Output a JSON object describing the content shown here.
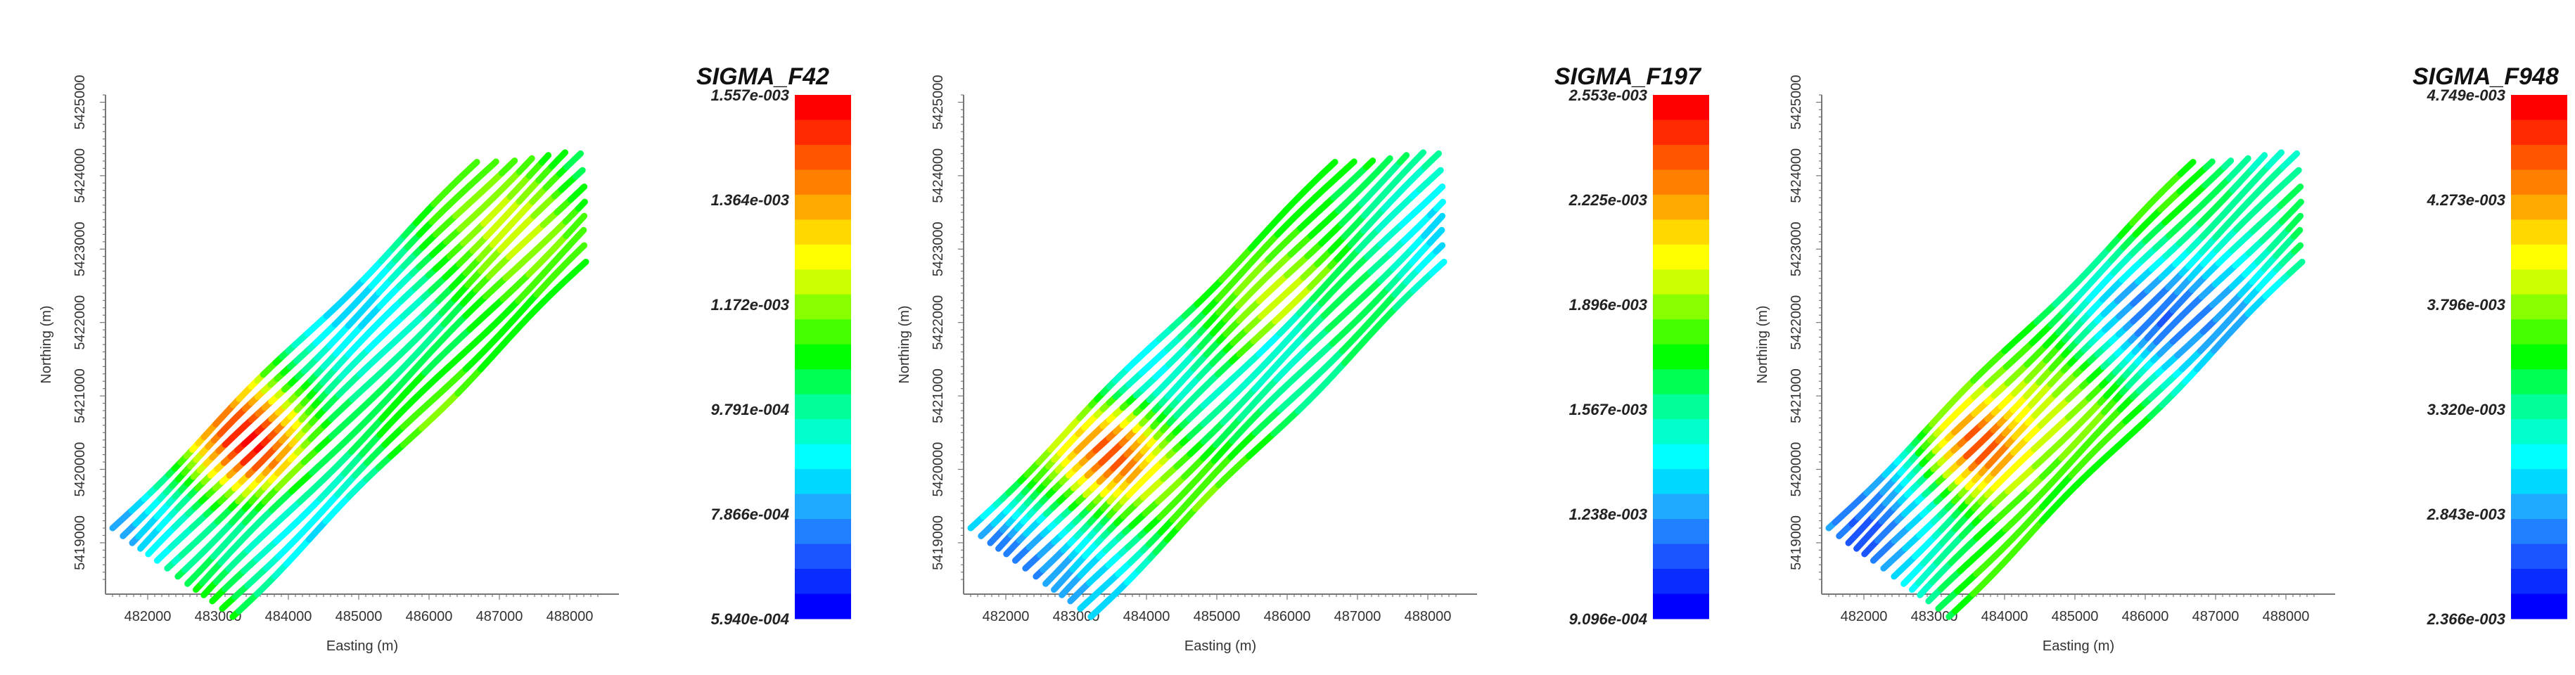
{
  "chart_data": [
    {
      "type": "scatter",
      "variable": "SIGMA_F42",
      "xlabel": "Easting (m)",
      "ylabel": "Northing (m)",
      "x_ticks": [
        "482000",
        "483000",
        "484000",
        "485000",
        "486000",
        "487000",
        "488000"
      ],
      "y_ticks": [
        "5419000",
        "5420000",
        "5421000",
        "5422000",
        "5423000",
        "5424000",
        "5425000"
      ],
      "xlim": [
        481400,
        488700
      ],
      "ylim": [
        5418300,
        5425100
      ],
      "colorbar": {
        "title": "SIGMA_F42",
        "tick_labels": [
          "1.557e-003",
          "1.364e-003",
          "1.172e-003",
          "9.791e-004",
          "7.866e-004",
          "5.940e-004"
        ],
        "min": 0.000594,
        "max": 0.001557
      },
      "flight_lines": {
        "count": 14,
        "heading_deg": 45,
        "description_values": "Values increase from blue (low) in the south-west and east-central zones to red (high) in the south-western band around Easting 483500-485000, Northing 5420000-5421000."
      }
    },
    {
      "type": "scatter",
      "variable": "SIGMA_F197",
      "xlabel": "Easting (m)",
      "ylabel": "Northing (m)",
      "x_ticks": [
        "482000",
        "483000",
        "484000",
        "485000",
        "486000",
        "487000",
        "488000"
      ],
      "y_ticks": [
        "5419000",
        "5420000",
        "5421000",
        "5422000",
        "5423000",
        "5424000",
        "5425000"
      ],
      "xlim": [
        481400,
        488700
      ],
      "ylim": [
        5418300,
        5425100
      ],
      "colorbar": {
        "title": "SIGMA_F197",
        "tick_labels": [
          "2.553e-003",
          "2.225e-003",
          "1.896e-003",
          "1.567e-003",
          "1.238e-003",
          "9.096e-004"
        ],
        "min": 0.0009096,
        "max": 0.002553
      }
    },
    {
      "type": "scatter",
      "variable": "SIGMA_F948",
      "xlabel": "Easting (m)",
      "ylabel": "Northing (m)",
      "x_ticks": [
        "482000",
        "483000",
        "484000",
        "485000",
        "486000",
        "487000",
        "488000"
      ],
      "y_ticks": [
        "5419000",
        "5420000",
        "5421000",
        "5422000",
        "5423000",
        "5424000",
        "5425000"
      ],
      "xlim": [
        481400,
        488700
      ],
      "ylim": [
        5418300,
        5425100
      ],
      "colorbar": {
        "title": "SIGMA_F948",
        "tick_labels": [
          "4.749e-003",
          "4.273e-003",
          "3.796e-003",
          "3.320e-003",
          "2.843e-003",
          "2.366e-003"
        ],
        "min": 0.002366,
        "max": 0.004749
      }
    }
  ],
  "palette": [
    "#0000ff",
    "#0a2cff",
    "#1a55ff",
    "#2080ff",
    "#20aaff",
    "#00d8ff",
    "#00ffff",
    "#00ffcc",
    "#00ff99",
    "#00ff55",
    "#00ff00",
    "#44ff00",
    "#88ff00",
    "#ccff00",
    "#ffff00",
    "#ffd800",
    "#ffaa00",
    "#ff7f00",
    "#ff5500",
    "#ff2a00",
    "#ff0000"
  ]
}
